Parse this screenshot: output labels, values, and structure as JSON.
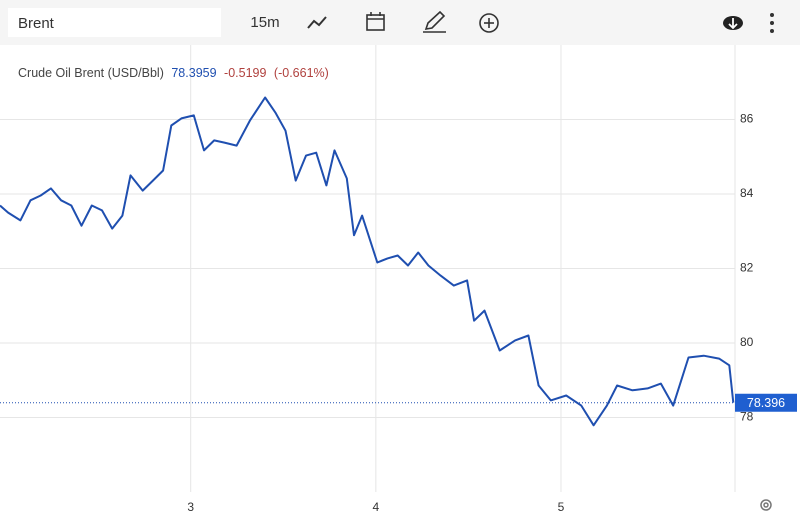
{
  "toolbar": {
    "symbol": "Brent",
    "interval": "15m"
  },
  "chart_data": {
    "type": "line",
    "legend_title": "Crude Oil Brent (USD/Bbl)",
    "last_price": 78.3959,
    "change": -0.5199,
    "change_percent_label": "(-0.661%)",
    "last_value": 78.396,
    "x": [
      1.97,
      2.014,
      2.08,
      2.135,
      2.19,
      2.245,
      2.3,
      2.355,
      2.41,
      2.466,
      2.521,
      2.576,
      2.631,
      2.675,
      2.741,
      2.796,
      2.851,
      2.895,
      2.95,
      3.017,
      3.072,
      3.127,
      3.182,
      3.248,
      3.32,
      3.402,
      3.457,
      3.512,
      3.567,
      3.623,
      3.678,
      3.733,
      3.777,
      3.843,
      3.882,
      3.926,
      4.008,
      4.063,
      4.118,
      4.174,
      4.229,
      4.284,
      4.35,
      4.421,
      4.493,
      4.531,
      4.587,
      4.669,
      4.752,
      4.824,
      4.879,
      4.945,
      5.028,
      5.11,
      5.176,
      5.248,
      5.303,
      5.386,
      5.468,
      5.54,
      5.606,
      5.689,
      5.771,
      5.854,
      5.909,
      5.931
    ],
    "series": [
      {
        "name": "Crude Oil Brent (USD/Bbl)",
        "color": "#1f4fb0",
        "values": [
          83.69,
          83.5,
          83.29,
          83.83,
          83.96,
          84.15,
          83.83,
          83.69,
          83.15,
          83.69,
          83.56,
          83.07,
          83.42,
          84.5,
          84.09,
          84.36,
          84.63,
          85.84,
          86.03,
          86.11,
          85.17,
          85.44,
          85.38,
          85.3,
          85.97,
          86.59,
          86.19,
          85.7,
          84.36,
          85.03,
          85.11,
          84.23,
          85.17,
          84.42,
          82.89,
          83.42,
          82.16,
          82.27,
          82.35,
          82.08,
          82.43,
          82.08,
          81.81,
          81.54,
          81.68,
          80.6,
          80.87,
          79.8,
          80.07,
          80.2,
          78.86,
          78.46,
          78.59,
          78.32,
          77.79,
          78.32,
          78.86,
          78.73,
          78.78,
          78.91,
          78.32,
          79.61,
          79.66,
          79.58,
          79.4,
          78.4
        ]
      }
    ],
    "xlim": [
      1.97,
      5.94
    ],
    "xticks": [
      3,
      4,
      5
    ],
    "ylim": [
      76,
      88
    ],
    "yticks": [
      78,
      80,
      82,
      84,
      86
    ],
    "grid": true
  }
}
